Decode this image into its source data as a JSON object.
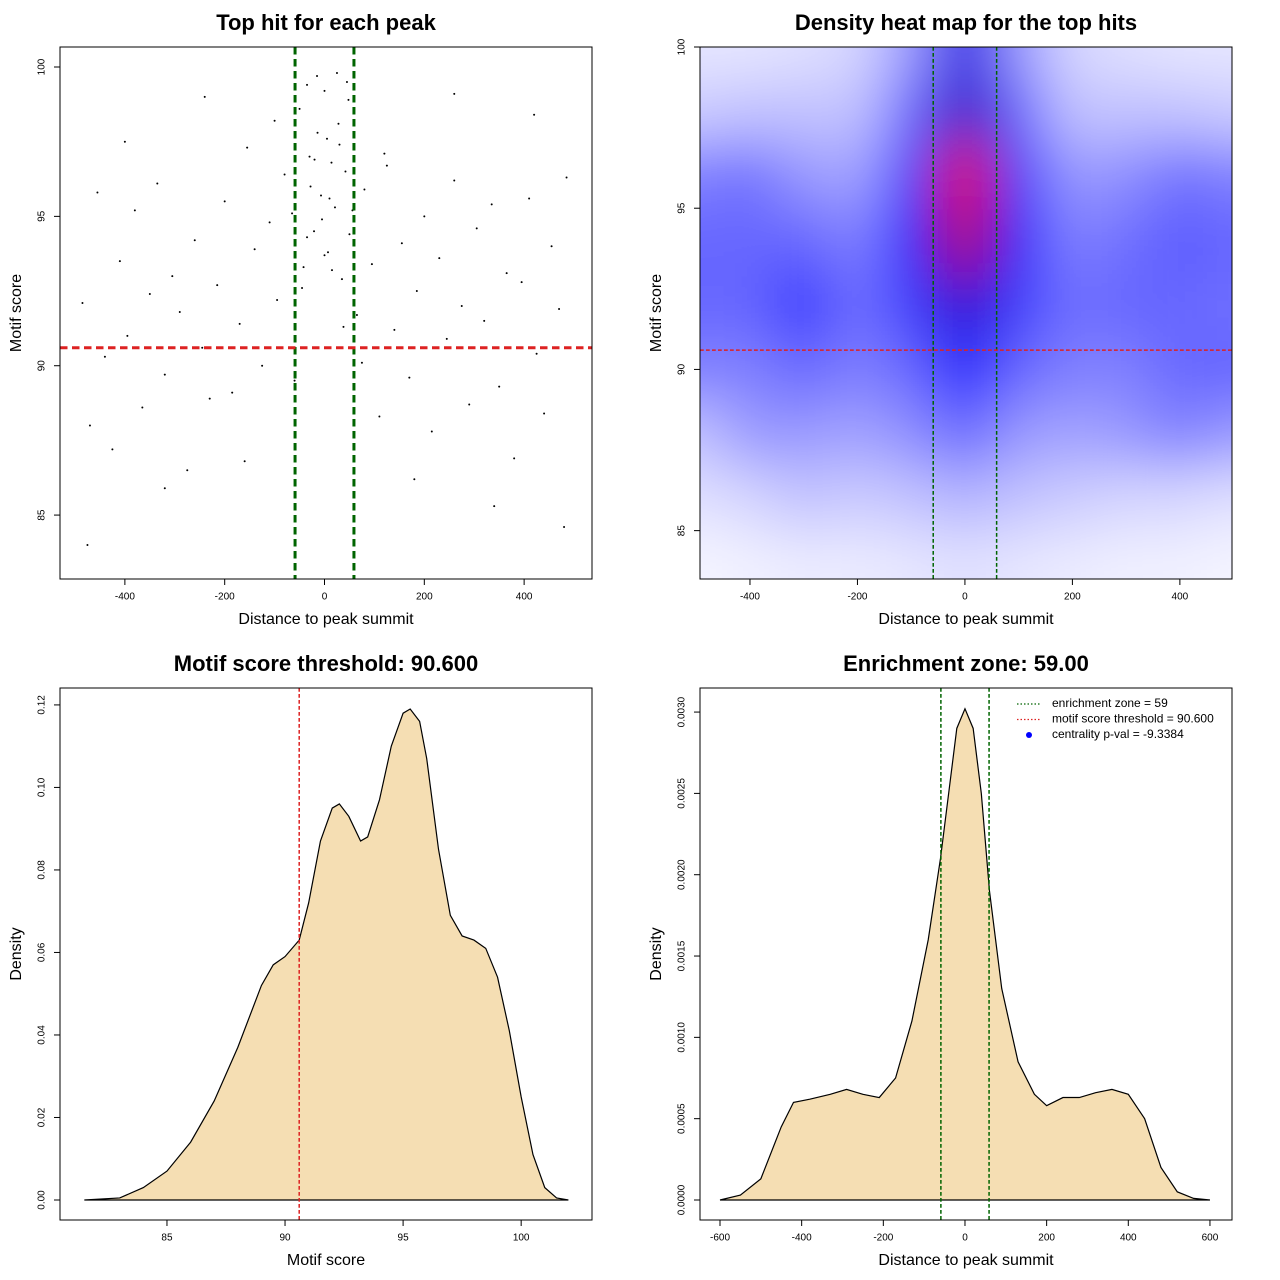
{
  "chart_data": [
    {
      "type": "scatter",
      "title": "Top hit for each peak",
      "xlabel": "Distance to peak summit",
      "ylabel": "Motif score",
      "x": [
        -485,
        -470,
        -455,
        -440,
        -425,
        -410,
        -395,
        -380,
        -365,
        -350,
        -335,
        -320,
        -305,
        -290,
        -275,
        -260,
        -245,
        -230,
        -215,
        -200,
        -185,
        -170,
        -155,
        -140,
        -125,
        -110,
        -95,
        -80,
        -65,
        -50,
        -42,
        -35,
        -28,
        -21,
        -14,
        -7,
        0,
        7,
        14,
        21,
        28,
        35,
        42,
        50,
        65,
        80,
        95,
        110,
        125,
        140,
        155,
        170,
        185,
        200,
        215,
        230,
        245,
        260,
        275,
        290,
        305,
        320,
        335,
        350,
        365,
        380,
        395,
        410,
        425,
        440,
        455,
        470,
        485,
        -475,
        -400,
        -320,
        -240,
        -160,
        -100,
        -60,
        -45,
        -30,
        -15,
        -5,
        5,
        15,
        25,
        38,
        48,
        56,
        75,
        120,
        180,
        260,
        340,
        420,
        480,
        -20,
        10,
        30,
        -35,
        45,
        0
      ],
      "y": [
        92.1,
        88.0,
        95.8,
        90.3,
        87.2,
        93.5,
        91.0,
        95.2,
        88.6,
        92.4,
        96.1,
        89.7,
        93.0,
        91.8,
        86.5,
        94.2,
        90.6,
        88.9,
        92.7,
        95.5,
        89.1,
        91.4,
        97.3,
        93.9,
        90.0,
        94.8,
        92.2,
        96.4,
        95.1,
        98.6,
        93.3,
        99.4,
        96.0,
        94.5,
        97.8,
        95.7,
        99.2,
        93.8,
        96.8,
        95.3,
        98.1,
        92.9,
        96.5,
        94.4,
        91.7,
        95.9,
        93.4,
        88.3,
        96.7,
        91.2,
        94.1,
        89.6,
        92.5,
        95.0,
        87.8,
        93.6,
        90.9,
        96.2,
        92.0,
        88.7,
        94.6,
        91.5,
        95.4,
        89.3,
        93.1,
        86.9,
        92.8,
        95.6,
        90.4,
        88.4,
        94.0,
        91.9,
        96.3,
        84.0,
        97.5,
        85.9,
        99.0,
        86.8,
        98.2,
        89.5,
        92.6,
        97.0,
        99.7,
        94.9,
        97.6,
        93.2,
        99.8,
        91.3,
        98.9,
        95.2,
        90.1,
        97.1,
        86.2,
        99.1,
        85.3,
        98.4,
        84.6,
        96.9,
        95.6,
        97.4,
        94.3,
        99.5,
        93.7
      ],
      "color": "#000000",
      "xlim": [
        -530,
        536
      ],
      "ylim": [
        82.86,
        100.67
      ],
      "xticks": [
        -400,
        -200,
        0,
        200,
        400
      ],
      "yticks": [
        85,
        90,
        95,
        100
      ],
      "vlines": [
        -59,
        59
      ],
      "vline_color": "#006400",
      "hline": 90.6,
      "hline_color": "#dd2222",
      "line_width": 3
    },
    {
      "type": "heatmap",
      "title": "Density heat map for the top hits",
      "xlabel": "Distance to peak summit",
      "ylabel": "Motif score",
      "x": [
        -500,
        -400,
        -300,
        -200,
        -100,
        0,
        100,
        200,
        300,
        400,
        500
      ],
      "y": [
        100,
        98,
        96,
        94,
        92,
        90,
        88,
        86,
        84
      ],
      "values": [
        [
          0.05,
          0.05,
          0.06,
          0.08,
          0.2,
          0.55,
          0.2,
          0.08,
          0.06,
          0.05,
          0.05
        ],
        [
          0.1,
          0.12,
          0.12,
          0.12,
          0.3,
          0.62,
          0.3,
          0.12,
          0.12,
          0.12,
          0.1
        ],
        [
          0.25,
          0.28,
          0.2,
          0.18,
          0.4,
          0.95,
          0.4,
          0.2,
          0.22,
          0.28,
          0.25
        ],
        [
          0.3,
          0.3,
          0.3,
          0.25,
          0.45,
          0.85,
          0.45,
          0.25,
          0.28,
          0.32,
          0.3
        ],
        [
          0.3,
          0.3,
          0.4,
          0.28,
          0.38,
          0.6,
          0.38,
          0.28,
          0.3,
          0.3,
          0.28
        ],
        [
          0.25,
          0.25,
          0.3,
          0.25,
          0.3,
          0.45,
          0.3,
          0.25,
          0.25,
          0.3,
          0.3
        ],
        [
          0.12,
          0.2,
          0.2,
          0.18,
          0.22,
          0.3,
          0.2,
          0.18,
          0.2,
          0.25,
          0.2
        ],
        [
          0.06,
          0.08,
          0.12,
          0.1,
          0.12,
          0.15,
          0.12,
          0.1,
          0.08,
          0.08,
          0.06
        ],
        [
          0.02,
          0.03,
          0.04,
          0.04,
          0.05,
          0.06,
          0.05,
          0.04,
          0.03,
          0.03,
          0.02
        ]
      ],
      "colorscale": [
        "#ffffff",
        "#0000ff",
        "#ff0000"
      ],
      "xlim": [
        -493,
        497
      ],
      "ylim": [
        83.5,
        100
      ],
      "xticks": [
        -400,
        -200,
        0,
        200,
        400
      ],
      "yticks": [
        85,
        90,
        95,
        100
      ],
      "vlines": [
        -59,
        59
      ],
      "vline_color": "#006400",
      "hline": 90.6,
      "hline_color": "#dd2222",
      "line_width": 1.5
    },
    {
      "type": "density",
      "title": "Motif score threshold: 90.600",
      "xlabel": "Motif score",
      "ylabel": "Density",
      "x": [
        81.5,
        83,
        84,
        85,
        86,
        87,
        88,
        89,
        89.5,
        90,
        90.6,
        91,
        91.5,
        92,
        92.3,
        92.7,
        93.2,
        93.5,
        94,
        94.5,
        95,
        95.3,
        95.7,
        96,
        96.5,
        97,
        97.5,
        98,
        98.5,
        99,
        99.5,
        100,
        100.5,
        101,
        101.5,
        102
      ],
      "y": [
        0,
        0.0005,
        0.003,
        0.007,
        0.014,
        0.024,
        0.037,
        0.052,
        0.057,
        0.059,
        0.063,
        0.072,
        0.087,
        0.095,
        0.096,
        0.093,
        0.087,
        0.088,
        0.097,
        0.11,
        0.118,
        0.119,
        0.116,
        0.107,
        0.085,
        0.069,
        0.064,
        0.063,
        0.061,
        0.054,
        0.041,
        0.025,
        0.011,
        0.003,
        0.0005,
        0
      ],
      "fill": "#f5deb3",
      "xlim": [
        80.47,
        103.0
      ],
      "ylim": [
        -0.00485,
        0.1241
      ],
      "xticks": [
        85,
        90,
        95,
        100
      ],
      "yticks": [
        {
          "value": 0,
          "label": "0.00"
        },
        {
          "value": 0.02,
          "label": "0.02"
        },
        {
          "value": 0.04,
          "label": "0.04"
        },
        {
          "value": 0.06,
          "label": "0.06"
        },
        {
          "value": 0.08,
          "label": "0.08"
        },
        {
          "value": 0.1,
          "label": "0.10"
        },
        {
          "value": 0.12,
          "label": "0.12"
        }
      ],
      "vlines": [
        90.6
      ],
      "vline_color": "#dd2222",
      "line_width": 1.5
    },
    {
      "type": "density",
      "title": "Enrichment zone: 59.00",
      "xlabel": "Distance to peak summit",
      "ylabel": "Density",
      "x": [
        -600,
        -550,
        -500,
        -450,
        -420,
        -380,
        -330,
        -290,
        -250,
        -210,
        -170,
        -130,
        -90,
        -60,
        -40,
        -20,
        0,
        20,
        40,
        60,
        90,
        130,
        170,
        200,
        240,
        280,
        320,
        360,
        400,
        440,
        480,
        520,
        560,
        600
      ],
      "y": [
        0,
        3e-05,
        0.00013,
        0.00045,
        0.0006,
        0.00062,
        0.00065,
        0.00068,
        0.00065,
        0.00063,
        0.00075,
        0.0011,
        0.0016,
        0.0021,
        0.0025,
        0.0029,
        0.00302,
        0.0029,
        0.0025,
        0.0019,
        0.0013,
        0.00085,
        0.00065,
        0.00058,
        0.00063,
        0.00063,
        0.00066,
        0.00068,
        0.00065,
        0.0005,
        0.0002,
        5e-05,
        1e-05,
        0
      ],
      "fill": "#f5deb3",
      "xlim": [
        -649,
        654
      ],
      "ylim": [
        -0.000123,
        0.003148
      ],
      "xticks": [
        -600,
        -400,
        -200,
        0,
        200,
        400,
        600
      ],
      "yticks": [
        {
          "value": 0,
          "label": "0.0000"
        },
        {
          "value": 0.0005,
          "label": "0.0005"
        },
        {
          "value": 0.001,
          "label": "0.0010"
        },
        {
          "value": 0.0015,
          "label": "0.0015"
        },
        {
          "value": 0.002,
          "label": "0.0020"
        },
        {
          "value": 0.0025,
          "label": "0.0025"
        },
        {
          "value": 0.003,
          "label": "0.0030"
        }
      ],
      "vlines": [
        -59,
        59
      ],
      "vline_color": "#006400",
      "line_width": 1.5,
      "legend": [
        {
          "label": "enrichment zone = 59",
          "color": "#006400",
          "style": "line"
        },
        {
          "label": "motif score threshold = 90.600",
          "color": "#dd2222",
          "style": "line"
        },
        {
          "label": "centrality p-val = -9.3384",
          "color": "#0000ff",
          "style": "point"
        }
      ],
      "legend_position": "top-right"
    }
  ]
}
